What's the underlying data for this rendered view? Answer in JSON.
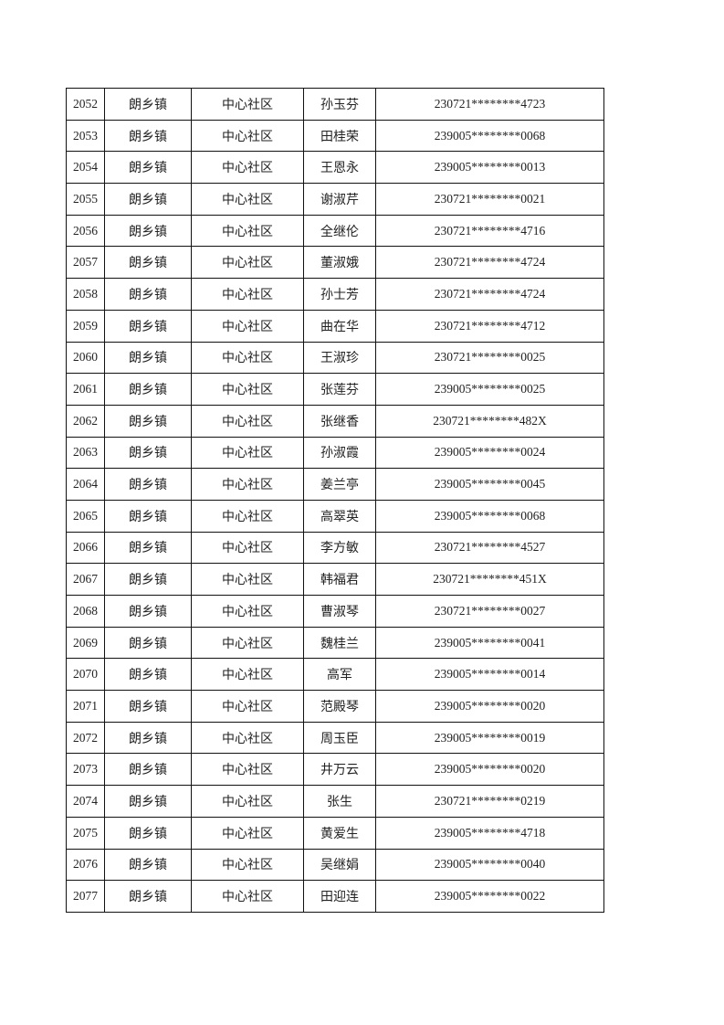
{
  "table": {
    "rows": [
      [
        "2052",
        "朗乡镇",
        "中心社区",
        "孙玉芬",
        "230721********4723"
      ],
      [
        "2053",
        "朗乡镇",
        "中心社区",
        "田桂荣",
        "239005********0068"
      ],
      [
        "2054",
        "朗乡镇",
        "中心社区",
        "王恩永",
        "239005********0013"
      ],
      [
        "2055",
        "朗乡镇",
        "中心社区",
        "谢淑芹",
        "230721********0021"
      ],
      [
        "2056",
        "朗乡镇",
        "中心社区",
        "全继伦",
        "230721********4716"
      ],
      [
        "2057",
        "朗乡镇",
        "中心社区",
        "董淑娥",
        "230721********4724"
      ],
      [
        "2058",
        "朗乡镇",
        "中心社区",
        "孙士芳",
        "230721********4724"
      ],
      [
        "2059",
        "朗乡镇",
        "中心社区",
        "曲在华",
        "230721********4712"
      ],
      [
        "2060",
        "朗乡镇",
        "中心社区",
        "王淑珍",
        "230721********0025"
      ],
      [
        "2061",
        "朗乡镇",
        "中心社区",
        "张莲芬",
        "239005********0025"
      ],
      [
        "2062",
        "朗乡镇",
        "中心社区",
        "张继香",
        "230721********482X"
      ],
      [
        "2063",
        "朗乡镇",
        "中心社区",
        "孙淑霞",
        "239005********0024"
      ],
      [
        "2064",
        "朗乡镇",
        "中心社区",
        "姜兰亭",
        "239005********0045"
      ],
      [
        "2065",
        "朗乡镇",
        "中心社区",
        "高翠英",
        "239005********0068"
      ],
      [
        "2066",
        "朗乡镇",
        "中心社区",
        "李方敏",
        "230721********4527"
      ],
      [
        "2067",
        "朗乡镇",
        "中心社区",
        "韩福君",
        "230721********451X"
      ],
      [
        "2068",
        "朗乡镇",
        "中心社区",
        "曹淑琴",
        "230721********0027"
      ],
      [
        "2069",
        "朗乡镇",
        "中心社区",
        "魏桂兰",
        "239005********0041"
      ],
      [
        "2070",
        "朗乡镇",
        "中心社区",
        "高军",
        "239005********0014"
      ],
      [
        "2071",
        "朗乡镇",
        "中心社区",
        "范殿琴",
        "239005********0020"
      ],
      [
        "2072",
        "朗乡镇",
        "中心社区",
        "周玉臣",
        "239005********0019"
      ],
      [
        "2073",
        "朗乡镇",
        "中心社区",
        "井万云",
        "239005********0020"
      ],
      [
        "2074",
        "朗乡镇",
        "中心社区",
        "张生",
        "230721********0219"
      ],
      [
        "2075",
        "朗乡镇",
        "中心社区",
        "黄爱生",
        "239005********4718"
      ],
      [
        "2076",
        "朗乡镇",
        "中心社区",
        "吴继娟",
        "239005********0040"
      ],
      [
        "2077",
        "朗乡镇",
        "中心社区",
        "田迎连",
        "239005********0022"
      ]
    ]
  }
}
